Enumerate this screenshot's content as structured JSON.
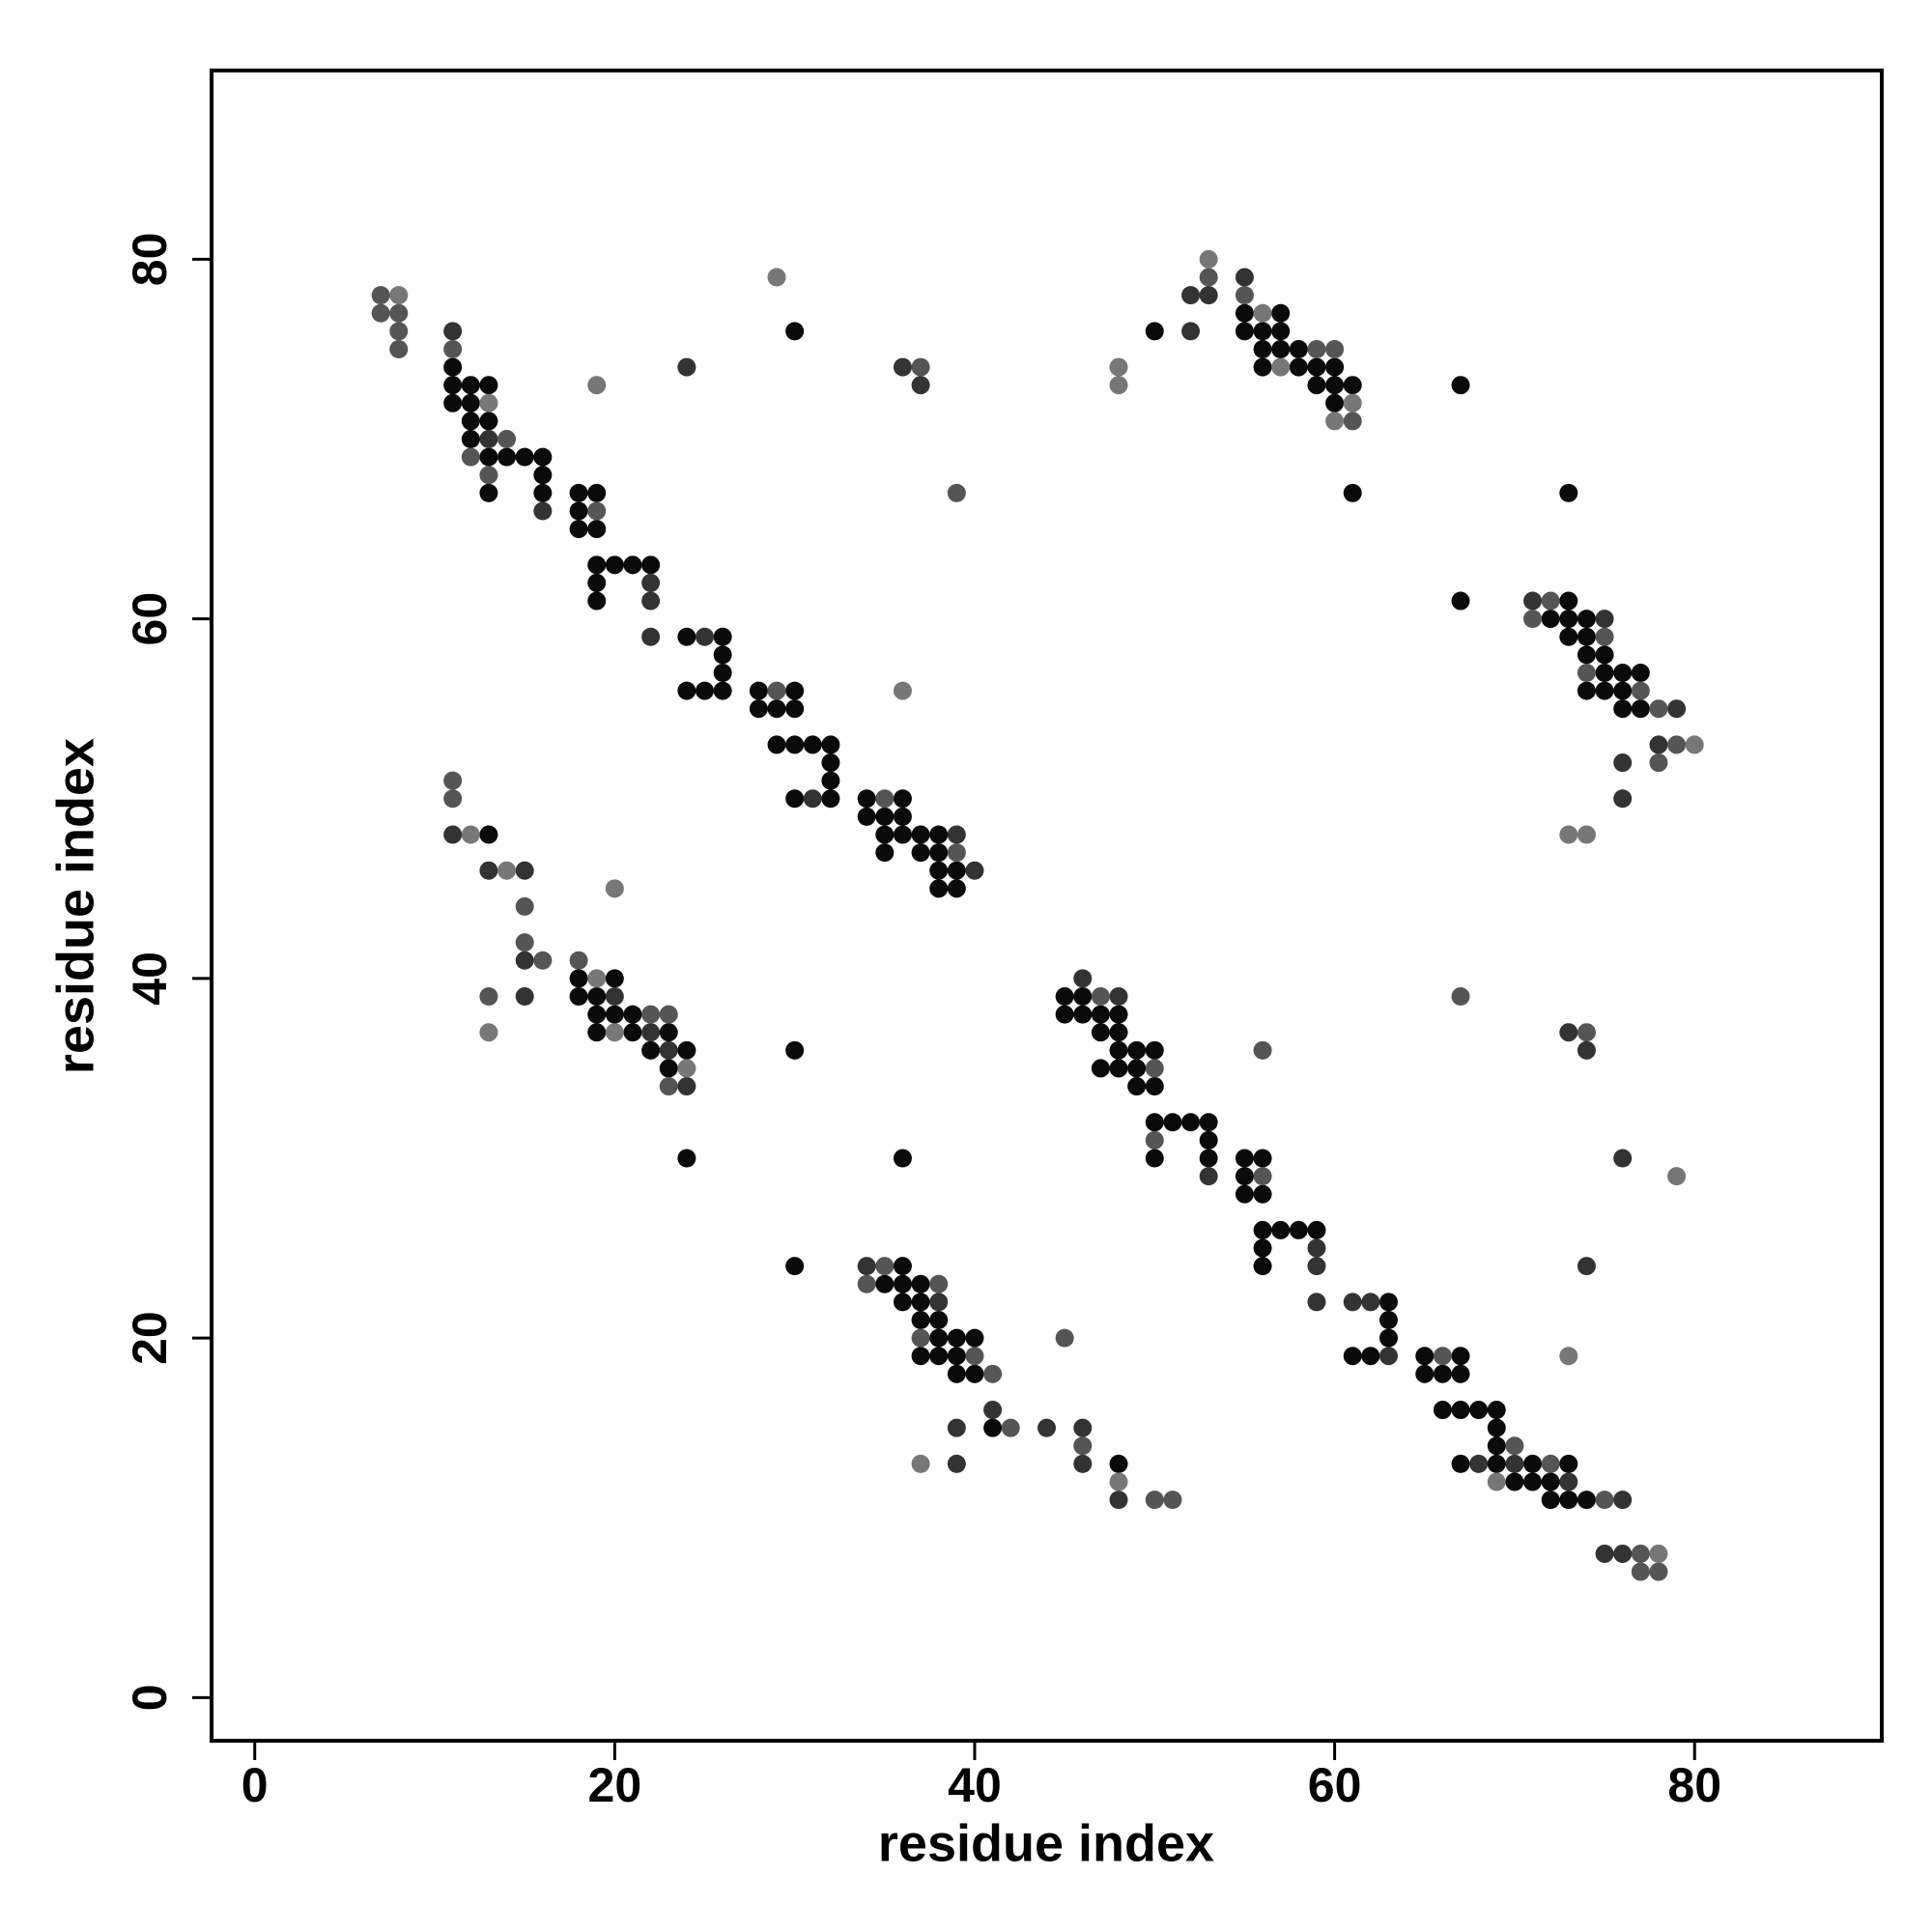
{
  "chart_data": {
    "type": "scatter",
    "xlabel": "residue index",
    "ylabel": "residue index",
    "xlim": [
      -2.4,
      90.4
    ],
    "ylim": [
      -2.4,
      90.5
    ],
    "xticks": [
      0,
      20,
      40,
      60,
      80
    ],
    "yticks": [
      0,
      20,
      40,
      60,
      80
    ],
    "grid": false,
    "series": [
      {
        "color": "#0a0a0a",
        "x": [
          11,
          11,
          12,
          13,
          11,
          12,
          12,
          13,
          12,
          13,
          14,
          15,
          16,
          16,
          13,
          16,
          18,
          19,
          18,
          18,
          19,
          19,
          20,
          21,
          22,
          19,
          19,
          24,
          26,
          26,
          26,
          24,
          25,
          26,
          28,
          30,
          28,
          29,
          30,
          29,
          30,
          31,
          32,
          32,
          32,
          30,
          32,
          34,
          36,
          34,
          35,
          36,
          35,
          36,
          37,
          38,
          35,
          37,
          38,
          38,
          39,
          38,
          39,
          30,
          57,
          55,
          55,
          56,
          57,
          56,
          57,
          58,
          56,
          58,
          59,
          60,
          59,
          60,
          61,
          60,
          50,
          61,
          67,
          73,
          67,
          73,
          72,
          73,
          74,
          73,
          74,
          74,
          75,
          75,
          76,
          77,
          74,
          75,
          76,
          76,
          77,
          13,
          18,
          20,
          18,
          19,
          19,
          20,
          21,
          19,
          21,
          23,
          22,
          24,
          23,
          24,
          30,
          36,
          30,
          45,
          46,
          45,
          46,
          47,
          48,
          47,
          48,
          48,
          49,
          50,
          47,
          48,
          49,
          49,
          50,
          50,
          51,
          52,
          53,
          53,
          50,
          53,
          55,
          56,
          55,
          55,
          56,
          56,
          57,
          58,
          59,
          56,
          56,
          63,
          63,
          63,
          61,
          62,
          65,
          67,
          65,
          66,
          67,
          66,
          67,
          68,
          69,
          69,
          69,
          67,
          69,
          71,
          73,
          70,
          71,
          72,
          72,
          73,
          74,
          36,
          35,
          36,
          37,
          36,
          37,
          37,
          38,
          38,
          39,
          40,
          37,
          38,
          39,
          39,
          40,
          41,
          48
        ],
        "values": [
          74,
          73,
          73,
          73,
          72,
          72,
          71,
          71,
          70,
          69,
          69,
          69,
          69,
          68,
          67,
          67,
          67,
          67,
          66,
          65,
          65,
          63,
          63,
          63,
          63,
          62,
          61,
          59,
          59,
          58,
          57,
          56,
          56,
          56,
          56,
          56,
          55,
          55,
          55,
          53,
          53,
          53,
          53,
          52,
          51,
          50,
          50,
          50,
          50,
          49,
          49,
          49,
          48,
          48,
          48,
          48,
          47,
          47,
          47,
          46,
          46,
          45,
          45,
          76,
          77,
          77,
          76,
          76,
          76,
          75,
          75,
          75,
          74,
          74,
          74,
          74,
          73,
          73,
          73,
          72,
          76,
          67,
          73,
          67,
          61,
          61,
          60,
          60,
          60,
          59,
          59,
          58,
          58,
          57,
          57,
          57,
          56,
          56,
          56,
          55,
          55,
          48,
          40,
          40,
          39,
          39,
          38,
          38,
          38,
          37,
          37,
          37,
          36,
          36,
          35,
          30,
          36,
          30,
          24,
          39,
          39,
          38,
          38,
          38,
          38,
          37,
          37,
          36,
          36,
          36,
          35,
          35,
          35,
          34,
          34,
          32,
          32,
          32,
          32,
          31,
          30,
          30,
          30,
          30,
          29,
          28,
          28,
          26,
          26,
          26,
          26,
          25,
          24,
          22,
          21,
          20,
          19,
          19,
          19,
          19,
          18,
          18,
          18,
          16,
          16,
          16,
          16,
          15,
          14,
          13,
          13,
          13,
          13,
          12,
          12,
          12,
          11,
          11,
          11,
          24,
          23,
          23,
          23,
          22,
          22,
          21,
          21,
          20,
          20,
          20,
          19,
          19,
          19,
          18,
          18,
          15,
          13
        ]
      },
      {
        "color": "#333333",
        "x": [
          11,
          13,
          16,
          22,
          22,
          22,
          25,
          31,
          39,
          40,
          24,
          36,
          37,
          52,
          53,
          55,
          52,
          71,
          75,
          79,
          78,
          76,
          76,
          11,
          13,
          15,
          15,
          15,
          20,
          22,
          23,
          24,
          48,
          46,
          53,
          59,
          59,
          59,
          61,
          62,
          63,
          68,
          70,
          73,
          76,
          75,
          76,
          73,
          74,
          76,
          74,
          34,
          38,
          41,
          39,
          39,
          44,
          46,
          46,
          48
        ],
        "values": [
          76,
          70,
          66,
          62,
          61,
          59,
          59,
          50,
          48,
          46,
          74,
          74,
          73,
          78,
          78,
          79,
          76,
          61,
          60,
          55,
          53,
          52,
          50,
          48,
          46,
          46,
          41,
          39,
          39,
          37,
          36,
          34,
          39,
          40,
          29,
          25,
          24,
          22,
          22,
          22,
          19,
          13,
          13,
          12,
          11,
          8,
          8,
          37,
          36,
          30,
          24,
          24,
          22,
          16,
          15,
          13,
          15,
          15,
          13,
          11
        ]
      },
      {
        "color": "#555555",
        "x": [
          7,
          7,
          8,
          8,
          8,
          11,
          14,
          12,
          13,
          19,
          29,
          35,
          39,
          37,
          39,
          53,
          55,
          59,
          60,
          61,
          72,
          71,
          75,
          74,
          77,
          78,
          79,
          78,
          11,
          11,
          15,
          15,
          16,
          13,
          18,
          22,
          23,
          23,
          47,
          50,
          50,
          56,
          66,
          70,
          72,
          75,
          77,
          77,
          78,
          56,
          67,
          74,
          45,
          35,
          34,
          38,
          37,
          40,
          41,
          42,
          46,
          50,
          51
        ],
        "values": [
          78,
          77,
          77,
          76,
          75,
          75,
          70,
          69,
          68,
          66,
          56,
          50,
          47,
          74,
          67,
          79,
          78,
          75,
          75,
          71,
          61,
          60,
          59,
          57,
          56,
          55,
          53,
          52,
          51,
          50,
          44,
          42,
          41,
          39,
          41,
          38,
          38,
          34,
          39,
          35,
          31,
          29,
          19,
          14,
          13,
          11,
          8,
          7,
          7,
          36,
          39,
          37,
          20,
          24,
          23,
          23,
          20,
          19,
          18,
          15,
          14,
          11,
          11
        ]
      },
      {
        "color": "#777777",
        "x": [
          8,
          13,
          19,
          29,
          36,
          48,
          48,
          53,
          56,
          57,
          61,
          60,
          80,
          73,
          74,
          12,
          14,
          20,
          13,
          19,
          20,
          24,
          69,
          78,
          79,
          73,
          37,
          48
        ],
        "values": [
          78,
          72,
          73,
          79,
          56,
          74,
          73,
          80,
          77,
          74,
          72,
          71,
          53,
          48,
          48,
          48,
          46,
          45,
          37,
          40,
          37,
          35,
          12,
          8,
          29,
          19,
          13,
          12
        ]
      }
    ]
  }
}
